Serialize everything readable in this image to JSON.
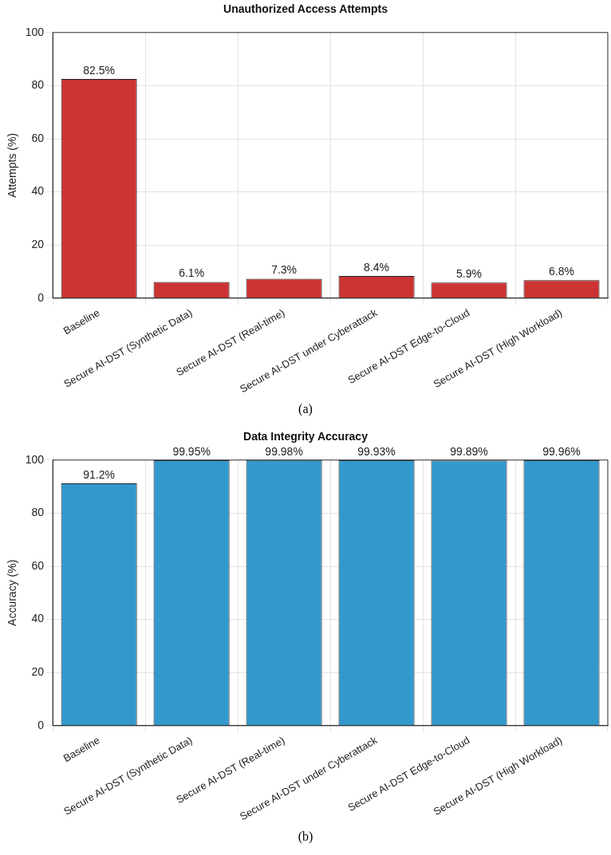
{
  "chart_data": [
    {
      "type": "bar",
      "title": "Unauthorized Access Attempts",
      "ylabel": "Attempts (%)",
      "categories": [
        "Baseline",
        "Secure AI-DST (Synthetic Data)",
        "Secure AI-DST (Real-time)",
        "Secure AI-DST under Cyberattack",
        "Secure AI-DST Edge-to-Cloud",
        "Secure AI-DST (High Workload)"
      ],
      "values": [
        82.5,
        6.1,
        7.3,
        8.4,
        5.9,
        6.8
      ],
      "color": "#cc3333",
      "value_labels": [
        "82.5%",
        "6.1%",
        "7.3%",
        "8.4%",
        "5.9%",
        "6.8%"
      ],
      "ylim": [
        0,
        100
      ],
      "yticks": [
        0,
        20,
        40,
        60,
        80,
        100
      ],
      "grid": true,
      "annotations": [
        "(a)"
      ]
    },
    {
      "type": "bar",
      "title": "Data Integrity Accuracy",
      "ylabel": "Accuracy (%)",
      "categories": [
        "Baseline",
        "Secure AI-DST (Synthetic Data)",
        "Secure AI-DST (Real-time)",
        "Secure AI-DST under Cyberattack",
        "Secure AI-DST Edge-to-Cloud",
        "Secure AI-DST (High Workload)"
      ],
      "values": [
        91.2,
        99.95,
        99.98,
        99.93,
        99.89,
        99.96
      ],
      "color": "#3399cc",
      "value_labels": [
        "91.2%",
        "99.95%",
        "99.98%",
        "99.93%",
        "99.89%",
        "99.96%"
      ],
      "ylim": [
        0,
        100
      ],
      "yticks": [
        0,
        20,
        40,
        60,
        80,
        100
      ],
      "grid": true,
      "annotations": [
        "(b)"
      ]
    }
  ]
}
